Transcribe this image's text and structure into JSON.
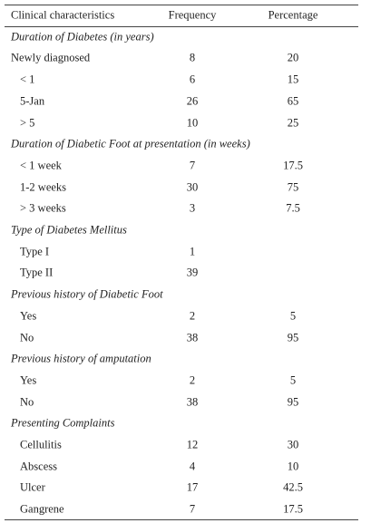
{
  "header": [
    "Clinical characteristics",
    "Frequency",
    "Percentage"
  ],
  "sections": [
    {
      "title": "Duration of Diabetes (in years)",
      "rows": [
        [
          "Newly diagnosed",
          "8",
          "20"
        ],
        [
          "< 1",
          "6",
          "15"
        ],
        [
          "5-Jan",
          "26",
          "65"
        ],
        [
          "> 5",
          "10",
          "25"
        ]
      ]
    },
    {
      "title": "Duration of Diabetic Foot at presentation (in weeks)",
      "rows": [
        [
          "< 1 week",
          "7",
          "17.5"
        ],
        [
          "1-2 weeks",
          "30",
          "75"
        ],
        [
          "> 3 weeks",
          "3",
          "7.5"
        ]
      ]
    },
    {
      "title": "Type of Diabetes Mellitus",
      "rows": [
        [
          "Type I",
          "1"
        ],
        [
          "Type II",
          "39"
        ]
      ]
    },
    {
      "title": "Previous history of Diabetic Foot",
      "rows": [
        [
          "Yes",
          "2",
          "5"
        ],
        [
          "No",
          "38",
          "95"
        ]
      ]
    },
    {
      "title": "Previous history of amputation",
      "rows": [
        [
          "Yes",
          "2",
          "5"
        ],
        [
          "No",
          "38",
          "95"
        ]
      ]
    },
    {
      "title": "Presenting Complaints",
      "rows": [
        [
          "Cellulitis",
          "12",
          "30"
        ],
        [
          "Abscess",
          "4",
          "10"
        ],
        [
          "Ulcer",
          "17",
          "42.5"
        ],
        [
          "Gangrene",
          "7",
          "17.5"
        ]
      ]
    }
  ]
}
